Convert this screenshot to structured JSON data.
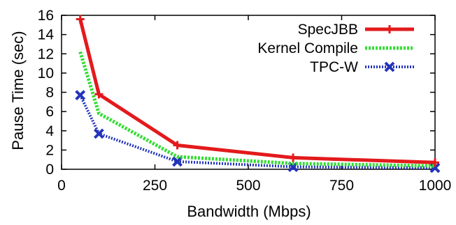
{
  "chart_data": {
    "type": "line",
    "xlabel": "Bandwidth (Mbps)",
    "ylabel": "Pause Time (sec)",
    "xlim": [
      0,
      1000
    ],
    "ylim": [
      0,
      16
    ],
    "xticks": [
      0,
      250,
      500,
      750,
      1000
    ],
    "yticks": [
      0,
      2,
      4,
      6,
      8,
      10,
      12,
      14,
      16
    ],
    "xtick_labels": [
      "0",
      "250",
      "500",
      "750",
      "1000"
    ],
    "ytick_labels": [
      "0",
      "2",
      "4",
      "6",
      "8",
      "10",
      "12",
      "14",
      "16"
    ],
    "grid": false,
    "legend_position": "top-right",
    "series": [
      {
        "name": "SpecJBB",
        "color": "#e31a1c",
        "line_style": "solid",
        "marker": "plus",
        "x": [
          50,
          100,
          310,
          620,
          1000
        ],
        "y": [
          15.6,
          7.8,
          2.5,
          1.2,
          0.7
        ]
      },
      {
        "name": "Kernel Compile",
        "color": "#33dd33",
        "line_style": "dotted",
        "marker": "none",
        "x": [
          50,
          100,
          310,
          620,
          1000
        ],
        "y": [
          12.2,
          5.8,
          1.3,
          0.6,
          0.35
        ]
      },
      {
        "name": "TPC-W",
        "color": "#2233bb",
        "line_style": "dotted",
        "marker": "cross",
        "x": [
          50,
          100,
          310,
          620,
          1000
        ],
        "y": [
          7.7,
          3.7,
          0.8,
          0.25,
          0.15
        ]
      }
    ]
  }
}
